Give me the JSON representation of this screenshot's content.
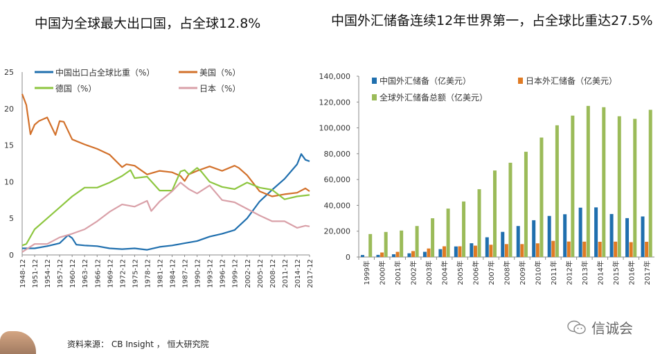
{
  "titles": {
    "left": "中国为全球最大出口国，占全球12.8%",
    "right": "中国外汇储备连续12年世界第一，占全球比重达27.5%"
  },
  "footer": {
    "source": "资料来源：  CB Insight ， 恒大研究院",
    "brand": "信诚会",
    "brand_icon": "wechat-icon"
  },
  "chart_data": [
    {
      "type": "line",
      "ylim": [
        0,
        25
      ],
      "yticks": [
        0,
        5,
        10,
        15,
        20,
        25
      ],
      "xlim": [
        1948,
        2017
      ],
      "xtick_labels": [
        "1948-12",
        "1951-12",
        "1954-12",
        "1957-12",
        "1960-12",
        "1963-12",
        "1966-12",
        "1969-12",
        "1972-12",
        "1975-12",
        "1978-12",
        "1981-12",
        "1984-12",
        "1987-12",
        "1990-12",
        "1993-12",
        "1996-12",
        "1999-12",
        "2002-12",
        "2005-12",
        "2008-12",
        "2011-12",
        "2014-12",
        "2017-12"
      ],
      "legend_position": "top",
      "series": [
        {
          "name": "中国出口占全球比重（%）",
          "color": "#1f6fae",
          "x": [
            1948,
            1951,
            1954,
            1957,
            1959,
            1960,
            1961,
            1963,
            1966,
            1969,
            1972,
            1975,
            1978,
            1981,
            1984,
            1987,
            1990,
            1993,
            1996,
            1999,
            2002,
            2005,
            2008,
            2011,
            2014,
            2015,
            2016,
            2017
          ],
          "y": [
            0.9,
            0.9,
            1.2,
            1.6,
            2.7,
            2.3,
            1.4,
            1.3,
            1.2,
            0.9,
            0.8,
            0.9,
            0.7,
            1.1,
            1.3,
            1.6,
            1.9,
            2.5,
            2.9,
            3.4,
            5.0,
            7.3,
            8.9,
            10.4,
            12.4,
            13.8,
            13.0,
            12.8
          ]
        },
        {
          "name": "美国（%）",
          "color": "#d2702a",
          "x": [
            1948,
            1949,
            1950,
            1951,
            1952,
            1954,
            1956,
            1957,
            1958,
            1960,
            1963,
            1966,
            1969,
            1972,
            1973,
            1975,
            1978,
            1981,
            1984,
            1986,
            1987,
            1988,
            1990,
            1993,
            1996,
            1999,
            2000,
            2002,
            2005,
            2008,
            2011,
            2014,
            2016,
            2017
          ],
          "y": [
            22,
            20.5,
            16.5,
            17.8,
            18.3,
            18.8,
            16.4,
            18.3,
            18.2,
            15.8,
            15.1,
            14.5,
            13.7,
            12.0,
            12.4,
            12.2,
            11.0,
            11.5,
            11.3,
            10.8,
            10.1,
            11.0,
            11.5,
            12.1,
            11.5,
            12.2,
            11.9,
            10.9,
            8.7,
            8.0,
            8.3,
            8.5,
            9.1,
            8.7
          ]
        },
        {
          "name": "德国（%）",
          "color": "#8dc63f",
          "x": [
            1948,
            1949,
            1951,
            1954,
            1957,
            1960,
            1963,
            1966,
            1969,
            1972,
            1974,
            1975,
            1978,
            1981,
            1984,
            1986,
            1987,
            1988,
            1990,
            1991,
            1993,
            1996,
            1999,
            2002,
            2005,
            2008,
            2011,
            2014,
            2017
          ],
          "y": [
            1.3,
            1.5,
            3.5,
            5.0,
            6.5,
            8.0,
            9.2,
            9.2,
            9.9,
            10.8,
            11.6,
            10.5,
            10.7,
            8.8,
            8.8,
            11.4,
            11.6,
            11.0,
            11.9,
            11.4,
            10.0,
            9.3,
            9.0,
            9.9,
            9.2,
            8.9,
            7.6,
            8.0,
            8.2
          ]
        },
        {
          "name": "日本（%）",
          "color": "#d9a0a8",
          "x": [
            1948,
            1951,
            1954,
            1957,
            1960,
            1963,
            1966,
            1969,
            1972,
            1975,
            1978,
            1979,
            1981,
            1984,
            1986,
            1988,
            1990,
            1993,
            1996,
            1999,
            2002,
            2005,
            2008,
            2011,
            2014,
            2016,
            2017
          ],
          "y": [
            0.4,
            1.5,
            1.5,
            2.4,
            2.9,
            3.5,
            4.6,
            5.9,
            6.9,
            6.6,
            7.4,
            6.0,
            7.3,
            8.7,
            9.9,
            9.0,
            8.4,
            9.5,
            7.5,
            7.2,
            6.3,
            5.4,
            4.6,
            4.6,
            3.7,
            4.0,
            3.9
          ]
        }
      ]
    },
    {
      "type": "bar",
      "ylim": [
        0,
        140000
      ],
      "yticks": [
        "0",
        "20,000",
        "40,000",
        "60,000",
        "80,000",
        "100,000",
        "120,000",
        "140,000"
      ],
      "categories": [
        "1999年",
        "2000年",
        "2001年",
        "2002年",
        "2003年",
        "2004年",
        "2005年",
        "2006年",
        "2007年",
        "2008年",
        "2009年",
        "2010年",
        "2011年",
        "2012年",
        "2013年",
        "2014年",
        "2015年",
        "2016年",
        "2017年"
      ],
      "legend_position": "top",
      "series": [
        {
          "name": "中国外汇储备（亿美元）",
          "color": "#1f6fae",
          "values": [
            1547,
            1656,
            2122,
            2864,
            4033,
            6099,
            8189,
            10663,
            15282,
            19460,
            23992,
            28473,
            31811,
            33116,
            38213,
            38430,
            33304,
            30105,
            31399
          ]
        },
        {
          "name": "日本外汇储备（亿美元）",
          "color": "#e07b24",
          "values": [
            0,
            3500,
            4000,
            4600,
            6600,
            8300,
            8300,
            8800,
            9500,
            10000,
            10000,
            10600,
            12500,
            12000,
            11900,
            11800,
            11900,
            11500,
            11800
          ]
        },
        {
          "name": "全球外汇储备总额（亿美元）",
          "color": "#9bbb59",
          "values": [
            17800,
            19400,
            20500,
            24000,
            30000,
            37500,
            43000,
            52500,
            67000,
            73000,
            81500,
            92500,
            102000,
            109500,
            117000,
            116000,
            109000,
            107000,
            114000
          ]
        }
      ]
    }
  ]
}
